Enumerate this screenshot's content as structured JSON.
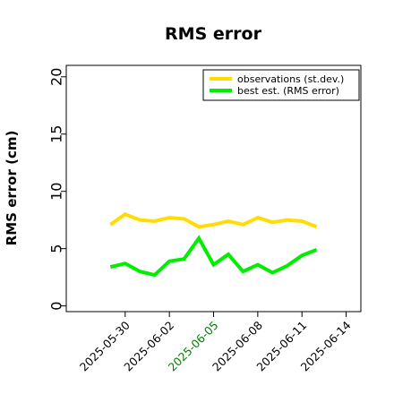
{
  "chart_data": {
    "type": "line",
    "title": "RMS error",
    "xlabel": "",
    "ylabel": "RMS error (cm)",
    "x_type": "date",
    "xlim": [
      "2025-05-26",
      "2025-06-15"
    ],
    "ylim": [
      -0.5,
      21
    ],
    "yticks": [
      0,
      5,
      10,
      15,
      20
    ],
    "xticks": [
      "2025-05-30",
      "2025-06-02",
      "2025-06-05",
      "2025-06-08",
      "2025-06-11",
      "2025-06-14"
    ],
    "xtick_colors": [
      "#000000",
      "#000000",
      "#008000",
      "#000000",
      "#000000",
      "#000000"
    ],
    "grid": false,
    "legend_position": "top-right",
    "x": [
      "2025-05-29",
      "2025-05-30",
      "2025-05-31",
      "2025-06-01",
      "2025-06-02",
      "2025-06-03",
      "2025-06-04",
      "2025-06-05",
      "2025-06-06",
      "2025-06-07",
      "2025-06-08",
      "2025-06-09",
      "2025-06-10",
      "2025-06-11",
      "2025-06-12"
    ],
    "series": [
      {
        "name": "observations (st.dev.)",
        "color": "#ffdd00",
        "values": [
          7.1,
          8.0,
          7.5,
          7.4,
          7.7,
          7.6,
          6.9,
          7.1,
          7.4,
          7.1,
          7.7,
          7.3,
          7.5,
          7.4,
          6.9
        ]
      },
      {
        "name": "best est. (RMS error)",
        "color": "#00ee00",
        "values": [
          3.4,
          3.7,
          3.0,
          2.7,
          3.9,
          4.1,
          5.9,
          3.6,
          4.5,
          3.0,
          3.6,
          2.9,
          3.5,
          4.4,
          4.9
        ]
      }
    ]
  }
}
